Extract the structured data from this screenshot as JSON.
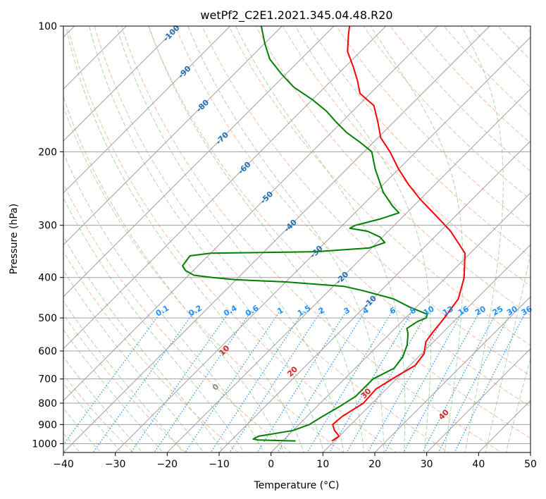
{
  "chart_data": {
    "type": "line",
    "subtype": "skew-T log-P diagram",
    "title": "wetPf2_C2E1.2021.345.04.48.R20",
    "xlabel": "Temperature (°C)",
    "ylabel": "Pressure (hPa)",
    "xlim": [
      -40,
      50
    ],
    "ylim": [
      1050,
      100
    ],
    "y_scale": "log",
    "x_ticks": [
      -40,
      -30,
      -20,
      -10,
      0,
      10,
      20,
      30,
      40,
      50
    ],
    "y_ticks": [
      100,
      200,
      300,
      400,
      500,
      600,
      700,
      800,
      900,
      1000
    ],
    "grid": true,
    "colors": {
      "temperature": "#ff0000",
      "dewpoint": "#008000",
      "isotherm": "#a0a0a0",
      "isobar": "#a0a0a0",
      "dry_adiabat": "#f4a582",
      "moist_adiabat": "#8fc98f",
      "mixing_ratio": "#1e90ff",
      "isotherm_label": "#1f6fb5",
      "dry_adiabat_label": "#d62728"
    },
    "series": [
      {
        "role": "temperature",
        "points": [
          {
            "p": 985,
            "t": 9.5
          },
          {
            "p": 960,
            "t": 10.0
          },
          {
            "p": 930,
            "t": 8.0
          },
          {
            "p": 900,
            "t": 6.5
          },
          {
            "p": 860,
            "t": 6.8
          },
          {
            "p": 800,
            "t": 8.3
          },
          {
            "p": 740,
            "t": 8.0
          },
          {
            "p": 690,
            "t": 9.5
          },
          {
            "p": 650,
            "t": 11.0
          },
          {
            "p": 610,
            "t": 10.5
          },
          {
            "p": 570,
            "t": 8.5
          },
          {
            "p": 540,
            "t": 8.0
          },
          {
            "p": 500,
            "t": 7.5
          },
          {
            "p": 450,
            "t": 6.5
          },
          {
            "p": 400,
            "t": 3.5
          },
          {
            "p": 350,
            "t": -1.0
          },
          {
            "p": 310,
            "t": -8.0
          },
          {
            "p": 290,
            "t": -12.5
          },
          {
            "p": 260,
            "t": -20.0
          },
          {
            "p": 240,
            "t": -25.0
          },
          {
            "p": 220,
            "t": -30.0
          },
          {
            "p": 200,
            "t": -35.0
          },
          {
            "p": 185,
            "t": -39.5
          },
          {
            "p": 170,
            "t": -43.0
          },
          {
            "p": 155,
            "t": -47.0
          },
          {
            "p": 145,
            "t": -52.0
          },
          {
            "p": 135,
            "t": -55.0
          },
          {
            "p": 125,
            "t": -58.5
          },
          {
            "p": 115,
            "t": -62.5
          },
          {
            "p": 105,
            "t": -65.5
          },
          {
            "p": 100,
            "t": -67.0
          }
        ]
      },
      {
        "role": "dewpoint",
        "points": [
          {
            "p": 985,
            "t": 2.5
          },
          {
            "p": 980,
            "t": -5.0
          },
          {
            "p": 975,
            "t": -6.0
          },
          {
            "p": 960,
            "t": -5.5
          },
          {
            "p": 930,
            "t": 0.0
          },
          {
            "p": 900,
            "t": 2.0
          },
          {
            "p": 860,
            "t": 3.0
          },
          {
            "p": 810,
            "t": 4.5
          },
          {
            "p": 770,
            "t": 5.5
          },
          {
            "p": 700,
            "t": 5.5
          },
          {
            "p": 660,
            "t": 7.5
          },
          {
            "p": 620,
            "t": 7.0
          },
          {
            "p": 580,
            "t": 5.5
          },
          {
            "p": 545,
            "t": 3.5
          },
          {
            "p": 530,
            "t": 2.3
          },
          {
            "p": 510,
            "t": 3.0
          },
          {
            "p": 500,
            "t": 4.0
          },
          {
            "p": 490,
            "t": 3.5
          },
          {
            "p": 480,
            "t": 1.0
          },
          {
            "p": 470,
            "t": -1.5
          },
          {
            "p": 450,
            "t": -6.0
          },
          {
            "p": 430,
            "t": -13.5
          },
          {
            "p": 420,
            "t": -18.0
          },
          {
            "p": 410,
            "t": -30.0
          },
          {
            "p": 405,
            "t": -40.0
          },
          {
            "p": 400,
            "t": -45.0
          },
          {
            "p": 395,
            "t": -49.0
          },
          {
            "p": 385,
            "t": -51.5
          },
          {
            "p": 375,
            "t": -53.0
          },
          {
            "p": 355,
            "t": -53.5
          },
          {
            "p": 350,
            "t": -50.0
          },
          {
            "p": 347,
            "t": -30.0
          },
          {
            "p": 340,
            "t": -20.5
          },
          {
            "p": 330,
            "t": -18.5
          },
          {
            "p": 320,
            "t": -20.5
          },
          {
            "p": 310,
            "t": -24.0
          },
          {
            "p": 305,
            "t": -28.0
          },
          {
            "p": 300,
            "t": -27.5
          },
          {
            "p": 290,
            "t": -24.0
          },
          {
            "p": 280,
            "t": -21.5
          },
          {
            "p": 270,
            "t": -24.0
          },
          {
            "p": 250,
            "t": -28.5
          },
          {
            "p": 220,
            "t": -34.5
          },
          {
            "p": 200,
            "t": -38.5
          },
          {
            "p": 190,
            "t": -42.5
          },
          {
            "p": 180,
            "t": -47.0
          },
          {
            "p": 170,
            "t": -51.0
          },
          {
            "p": 160,
            "t": -55.0
          },
          {
            "p": 150,
            "t": -60.0
          },
          {
            "p": 140,
            "t": -66.0
          },
          {
            "p": 130,
            "t": -71.0
          },
          {
            "p": 120,
            "t": -76.0
          },
          {
            "p": 110,
            "t": -80.0
          },
          {
            "p": 100,
            "t": -84.0
          }
        ]
      }
    ],
    "isotherm_labels": [
      -100,
      -90,
      -80,
      -70,
      -60,
      -50,
      -40,
      -30,
      -20,
      -10
    ],
    "mixing_ratio_labels": [
      0.1,
      0.2,
      0.4,
      0.6,
      1,
      1.5,
      2,
      3,
      4,
      6,
      8,
      10,
      13,
      16,
      20,
      25,
      30,
      36
    ],
    "dry_adiabat_labels": [
      0,
      10,
      20,
      30,
      40
    ]
  }
}
